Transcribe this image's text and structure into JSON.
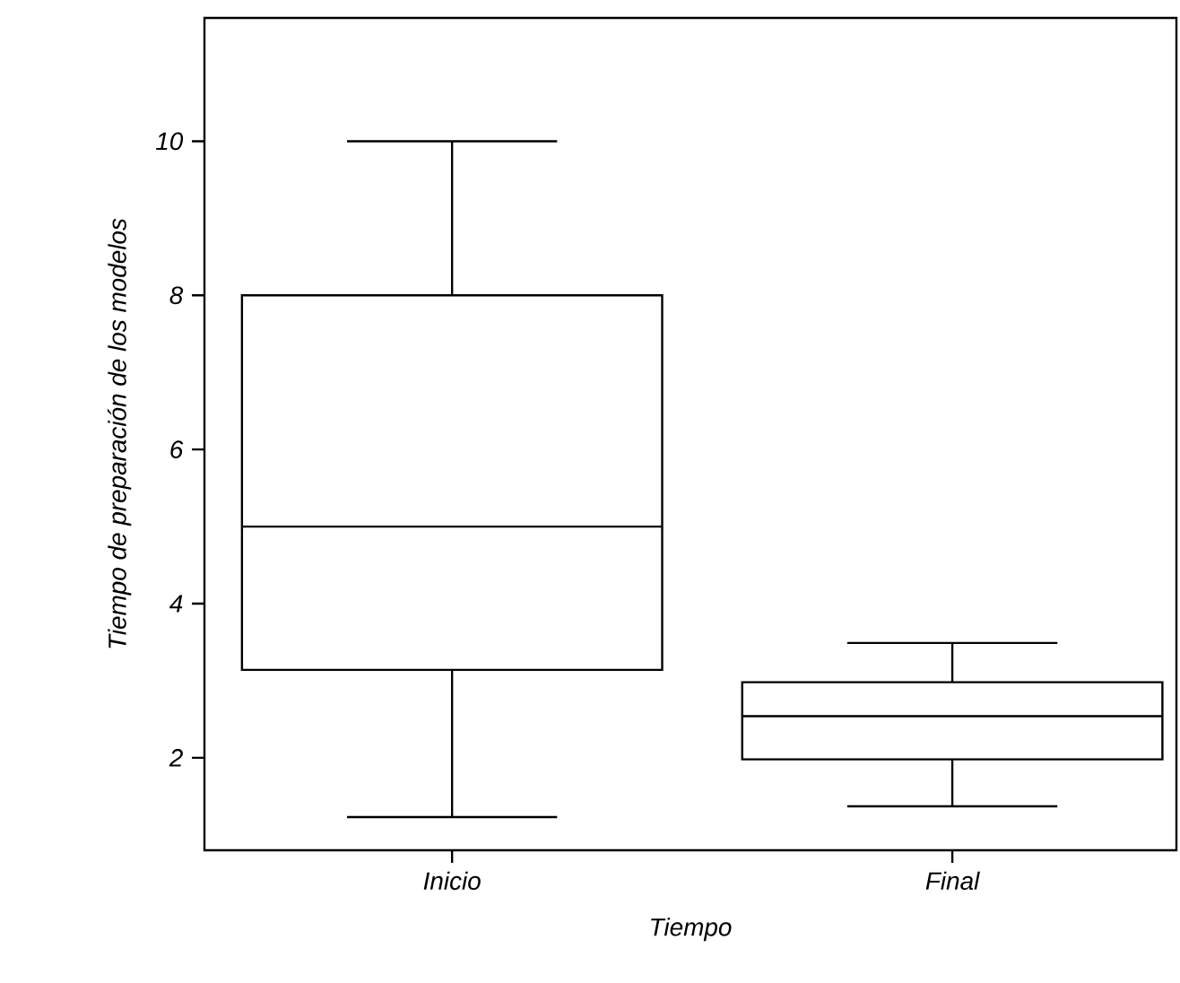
{
  "chart_data": {
    "type": "box",
    "xlabel": "Tiempo",
    "ylabel": "Tiempo de preparación de los modelos",
    "categories": [
      "Inicio",
      "Final"
    ],
    "boxes": [
      {
        "low": 1.23,
        "q1": 3.14,
        "median": 5.0,
        "q3": 8.0,
        "high": 10.0
      },
      {
        "low": 1.37,
        "q1": 1.98,
        "median": 2.54,
        "q3": 2.98,
        "high": 3.49
      }
    ],
    "ylim": [
      0.8,
      11.6
    ],
    "yticks": [
      2,
      4,
      6,
      8,
      10
    ]
  }
}
